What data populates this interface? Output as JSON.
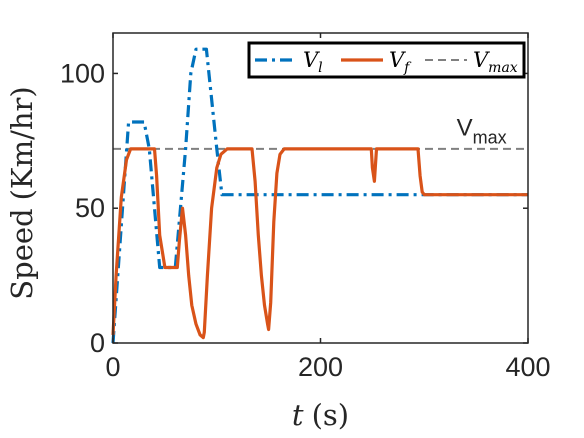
{
  "chart_data": {
    "type": "line",
    "xlabel_var": "t",
    "xlabel_unit": "(s)",
    "ylabel_word": "Speed",
    "ylabel_unit": "(Km/hr)",
    "xlim": [
      0,
      400
    ],
    "ylim": [
      0,
      115
    ],
    "xticks": [
      0,
      200,
      400
    ],
    "yticks": [
      0,
      50,
      100
    ],
    "grid": false,
    "legend_position": "top-right",
    "annotation": {
      "main": "V",
      "sub": "max",
      "x": 335,
      "y": 80
    },
    "series": [
      {
        "name": "V",
        "name_sub": "l",
        "color": "#0072BD",
        "style": "dash-dot",
        "x": [
          0,
          15,
          20,
          30,
          35,
          45,
          50,
          60,
          70,
          75,
          80,
          90,
          100,
          105,
          200,
          300,
          400
        ],
        "y": [
          0,
          82,
          82,
          82,
          72,
          28,
          28,
          28,
          72,
          100,
          109,
          109,
          72,
          55,
          55,
          55,
          55
        ]
      },
      {
        "name": "V",
        "name_sub": "f",
        "color": "#D95319",
        "style": "solid",
        "x": [
          0,
          3,
          8,
          13,
          17,
          40,
          42,
          45,
          50,
          62,
          64,
          67,
          70,
          73,
          76,
          80,
          84,
          87,
          88,
          91,
          95,
          100,
          104,
          110,
          134,
          137,
          140,
          143,
          146,
          149,
          150,
          152,
          155,
          158,
          161,
          165,
          249,
          250,
          252,
          254,
          294,
          296,
          298,
          300,
          400
        ],
        "y": [
          3,
          25,
          54,
          68,
          72,
          72,
          62,
          40,
          28,
          28,
          38,
          50,
          40,
          25,
          14,
          7,
          3,
          2,
          4,
          25,
          50,
          65,
          70,
          72,
          72,
          60,
          40,
          25,
          14,
          7,
          5,
          15,
          45,
          63,
          70,
          72,
          72,
          65,
          60,
          72,
          72,
          62,
          56,
          55,
          55
        ]
      },
      {
        "name": "V",
        "name_sub": "max",
        "color": "#808080",
        "style": "dashed",
        "x": [
          0,
          400
        ],
        "y": [
          72,
          72
        ]
      }
    ]
  }
}
